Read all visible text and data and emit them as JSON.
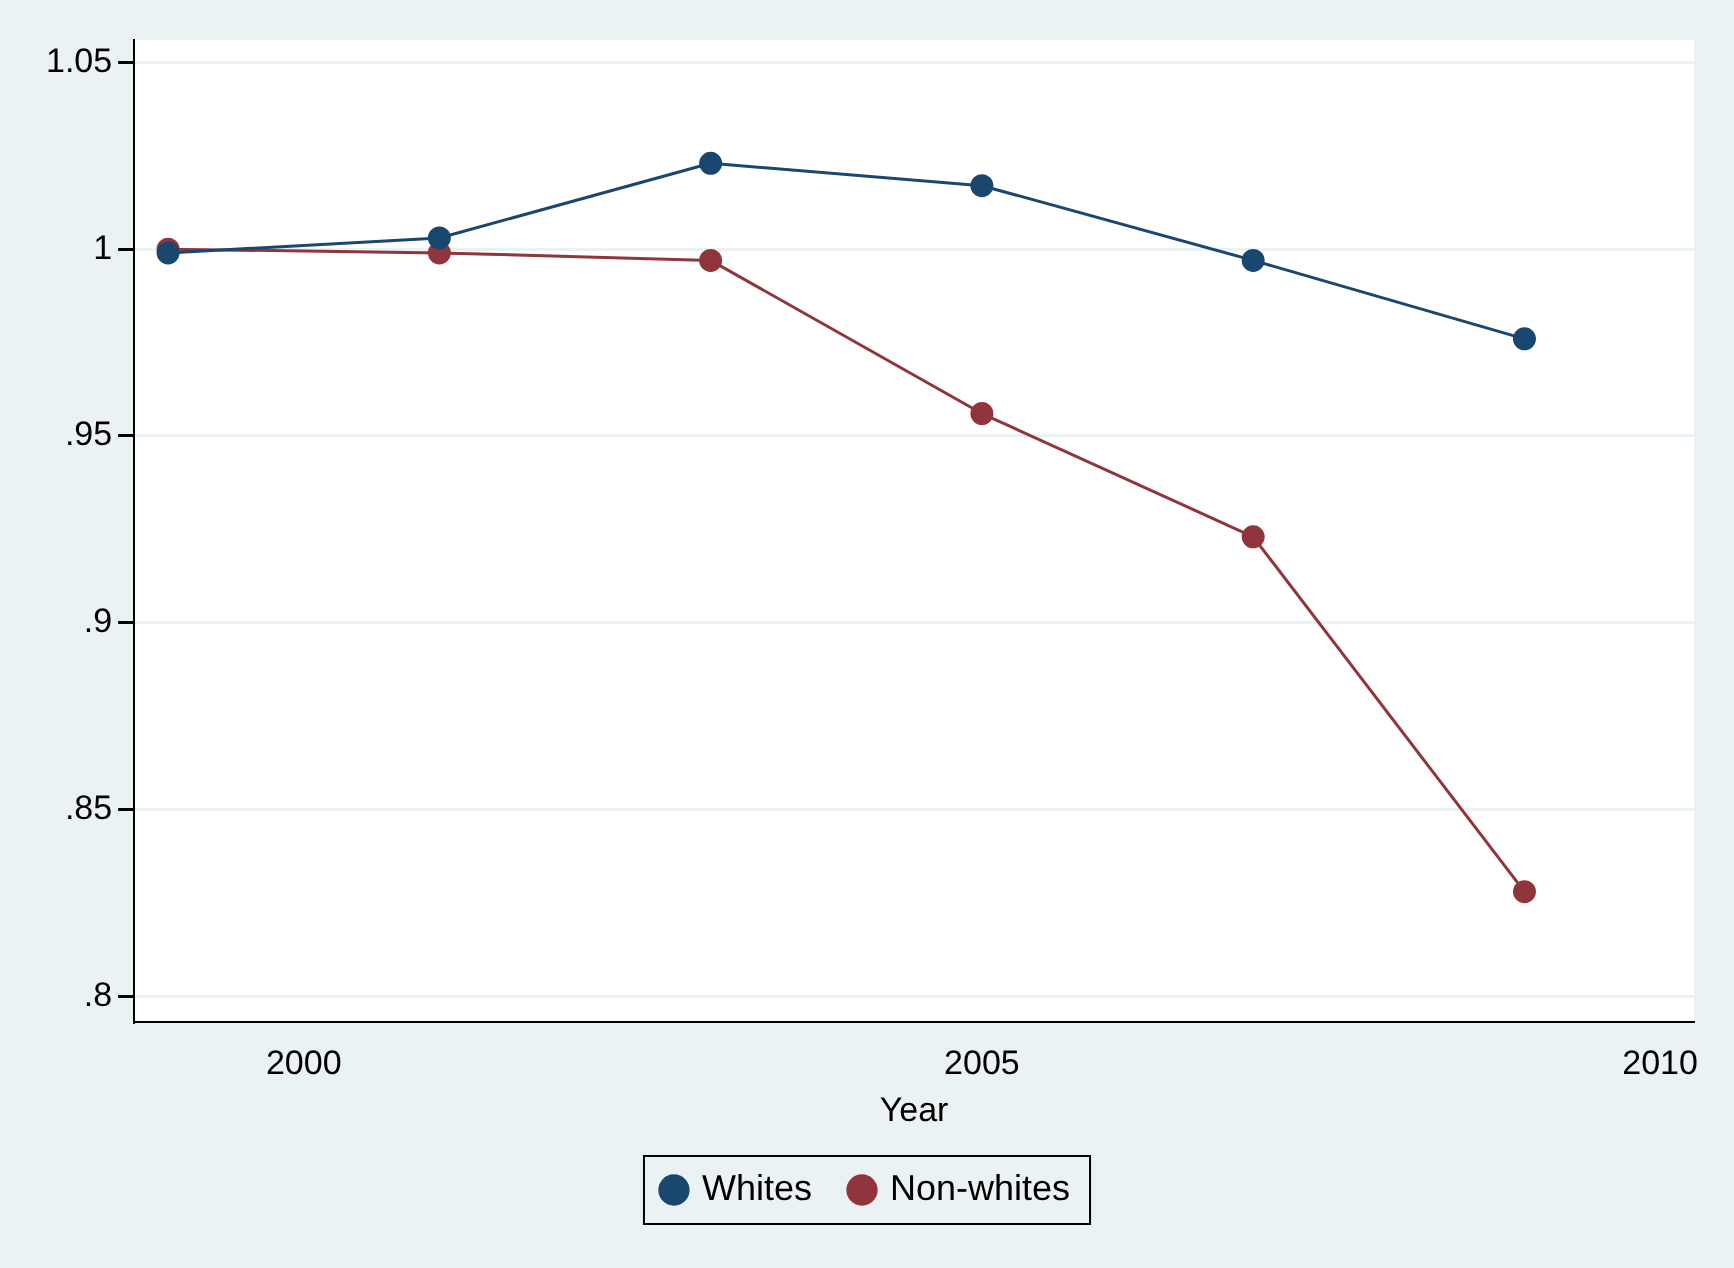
{
  "chart_data": {
    "type": "line",
    "xlabel": "Year",
    "x": [
      1999,
      2001,
      2003,
      2005,
      2007,
      2009
    ],
    "series": [
      {
        "name": "Whites",
        "color": "#1a476f",
        "values": [
          0.999,
          1.003,
          1.023,
          1.017,
          0.997,
          0.976
        ]
      },
      {
        "name": "Non-whites",
        "color": "#90353b",
        "values": [
          1.0,
          0.999,
          0.997,
          0.956,
          0.923,
          0.828
        ]
      }
    ],
    "xlim": [
      1998.75,
      2010.25
    ],
    "xticks": [
      2000,
      2005,
      2010
    ],
    "ylim": [
      0.793,
      1.056
    ],
    "yticks": [
      {
        "value": 0.8,
        "label": ".8"
      },
      {
        "value": 0.85,
        "label": ".85"
      },
      {
        "value": 0.9,
        "label": ".9"
      },
      {
        "value": 0.95,
        "label": ".95"
      },
      {
        "value": 1,
        "label": "1"
      },
      {
        "value": 1.05,
        "label": "1.05"
      }
    ],
    "grid": "y",
    "legend": "bottom",
    "marker": "circle",
    "line_style": "solid"
  }
}
